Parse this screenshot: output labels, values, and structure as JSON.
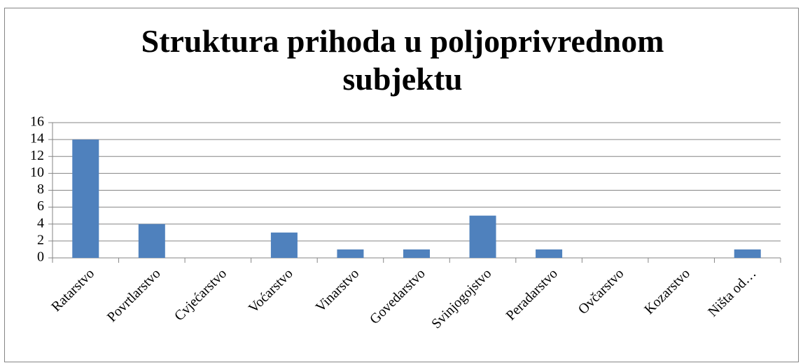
{
  "chart_data": {
    "type": "bar",
    "title": "Struktura prihoda u poljoprivrednom subjektu",
    "categories": [
      "Ratarstvo",
      "Povrtlarstvo",
      "Cvjećarstvo",
      "Voćarstvo",
      "Vinarstvo",
      "Govedarstvo",
      "Svinjogojstvo",
      "Peradarstvo",
      "Ovčarstvo",
      "Kozarstvo",
      "Ništa od…"
    ],
    "values": [
      14,
      4,
      0,
      3,
      1,
      1,
      5,
      1,
      0,
      0,
      1
    ],
    "color": "#4f81bd",
    "ylim": [
      0,
      16
    ],
    "yticks": [
      0,
      2,
      4,
      6,
      8,
      10,
      12,
      14,
      16
    ],
    "grid": true
  }
}
